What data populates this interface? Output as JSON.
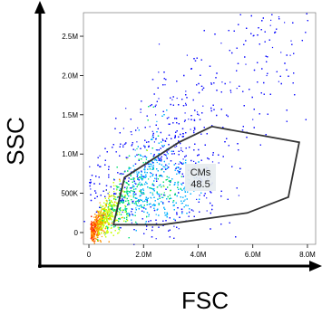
{
  "chart_data": {
    "type": "scatter",
    "title": "",
    "xlabel": "FSC",
    "ylabel": "SSC",
    "xlim": [
      -200000,
      8300000
    ],
    "ylim": [
      -150000,
      2800000
    ],
    "x_ticks": [
      {
        "value": 0,
        "label": "0"
      },
      {
        "value": 2000000,
        "label": "2.0M"
      },
      {
        "value": 4000000,
        "label": "4.0M"
      },
      {
        "value": 6000000,
        "label": "6.0M"
      },
      {
        "value": 8000000,
        "label": "8.0M"
      }
    ],
    "y_ticks": [
      {
        "value": 0,
        "label": "0"
      },
      {
        "value": 500000,
        "label": "500K"
      },
      {
        "value": 1000000,
        "label": "1.0M"
      },
      {
        "value": 1500000,
        "label": "1.5M"
      },
      {
        "value": 2000000,
        "label": "2.0M"
      },
      {
        "value": 2500000,
        "label": "2.5M"
      }
    ],
    "grid": false,
    "colormap": [
      "#1010ff",
      "#00b0ff",
      "#00e070",
      "#c8ff00",
      "#ff9000",
      "#ff2000"
    ],
    "gate": {
      "name": "CMs",
      "percent": "48.5",
      "polygon": [
        [
          900000,
          100000
        ],
        [
          1300000,
          700000
        ],
        [
          3300000,
          1150000
        ],
        [
          4500000,
          1350000
        ],
        [
          7700000,
          1150000
        ],
        [
          7300000,
          450000
        ],
        [
          5800000,
          250000
        ],
        [
          2700000,
          100000
        ]
      ]
    }
  }
}
